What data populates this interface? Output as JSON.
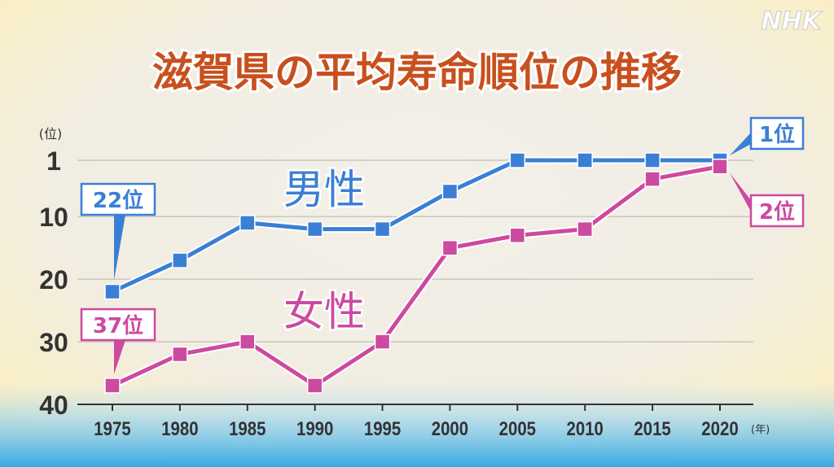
{
  "logo": "NHK",
  "chart_data": {
    "type": "line",
    "title": "滋賀県の平均寿命順位の推移",
    "x": [
      "1975",
      "1980",
      "1985",
      "1990",
      "1995",
      "2000",
      "2005",
      "2010",
      "2015",
      "2020"
    ],
    "x_unit": "(年)",
    "y_unit": "(位)",
    "y_ticks": [
      "1",
      "10",
      "20",
      "30",
      "40"
    ],
    "ylim": [
      40,
      1
    ],
    "y_inverted": true,
    "grid": true,
    "series": [
      {
        "name": "男性",
        "color": "#3a7fd5",
        "values": [
          22,
          17,
          11,
          12,
          12,
          6,
          1,
          1,
          1,
          1
        ],
        "callouts": [
          {
            "index": 0,
            "label": "22位",
            "side": "above"
          },
          {
            "index": 9,
            "label": "1位",
            "side": "right-up"
          }
        ]
      },
      {
        "name": "女性",
        "color": "#cc4aa0",
        "values": [
          37,
          32,
          30,
          37,
          30,
          15,
          13,
          12,
          4,
          2
        ],
        "callouts": [
          {
            "index": 0,
            "label": "37位",
            "side": "above"
          },
          {
            "index": 9,
            "label": "2位",
            "side": "right-down"
          }
        ]
      }
    ]
  },
  "colors": {
    "title": "#c8501e",
    "grid": "#c9c6c0",
    "axis": "#333333",
    "background_top": "#fdf2cf",
    "background_center": "#f3efe6",
    "background_bottom": "#4cb3e6"
  }
}
